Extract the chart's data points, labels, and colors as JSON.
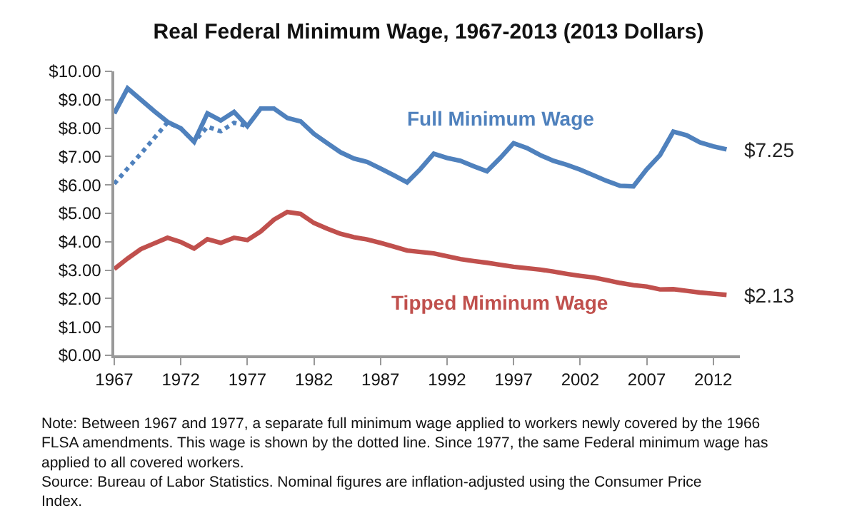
{
  "chart_data": {
    "type": "line",
    "title": "Real Federal Minimum Wage, 1967-2013 (2013 Dollars)",
    "x": [
      1967,
      1968,
      1969,
      1970,
      1971,
      1972,
      1973,
      1974,
      1975,
      1976,
      1977,
      1978,
      1979,
      1980,
      1981,
      1982,
      1983,
      1984,
      1985,
      1986,
      1987,
      1988,
      1989,
      1990,
      1991,
      1992,
      1993,
      1994,
      1995,
      1996,
      1997,
      1998,
      1999,
      2000,
      2001,
      2002,
      2003,
      2004,
      2005,
      2006,
      2007,
      2008,
      2009,
      2010,
      2011,
      2012,
      2013
    ],
    "series": [
      {
        "name": "Full Minimum Wage",
        "color": "#4f81bd",
        "line_style": "solid",
        "values": [
          8.52,
          9.4,
          9.0,
          8.6,
          8.22,
          7.99,
          7.52,
          8.52,
          8.27,
          8.57,
          8.07,
          8.69,
          8.69,
          8.36,
          8.24,
          7.8,
          7.47,
          7.15,
          6.93,
          6.81,
          6.58,
          6.34,
          6.09,
          6.56,
          7.1,
          6.95,
          6.85,
          6.66,
          6.48,
          6.95,
          7.47,
          7.3,
          7.05,
          6.85,
          6.71,
          6.54,
          6.34,
          6.14,
          5.97,
          5.95,
          6.55,
          7.05,
          7.88,
          7.75,
          7.5,
          7.36,
          7.25
        ]
      },
      {
        "color": "#4f81bd",
        "line_style": "dotted",
        "values": [
          6.04,
          6.58,
          7.1,
          7.65,
          8.2,
          7.99,
          7.52,
          8.05,
          7.89,
          8.19,
          8.07,
          null,
          null,
          null,
          null,
          null,
          null,
          null,
          null,
          null,
          null,
          null,
          null,
          null,
          null,
          null,
          null,
          null,
          null,
          null,
          null,
          null,
          null,
          null,
          null,
          null,
          null,
          null,
          null,
          null,
          null,
          null,
          null,
          null,
          null,
          null,
          null
        ]
      },
      {
        "name": "Tipped Miminum Wage",
        "color": "#c0504d",
        "line_style": "solid",
        "values": [
          3.04,
          3.41,
          3.74,
          3.94,
          4.14,
          3.99,
          3.76,
          4.09,
          3.96,
          4.14,
          4.06,
          4.36,
          4.78,
          5.05,
          4.98,
          4.66,
          4.46,
          4.28,
          4.16,
          4.08,
          3.96,
          3.83,
          3.69,
          3.64,
          3.59,
          3.49,
          3.39,
          3.32,
          3.26,
          3.19,
          3.12,
          3.07,
          3.02,
          2.95,
          2.87,
          2.8,
          2.74,
          2.65,
          2.55,
          2.47,
          2.42,
          2.32,
          2.33,
          2.27,
          2.21,
          2.17,
          2.13
        ]
      }
    ],
    "xlim": [
      1967,
      2014
    ],
    "xticks": [
      1967,
      1972,
      1977,
      1982,
      1987,
      1992,
      1997,
      2002,
      2007,
      2012
    ],
    "ylim": [
      0,
      10
    ],
    "yticks": [
      {
        "value": 0,
        "label": "$0.00"
      },
      {
        "value": 1,
        "label": "$1.00"
      },
      {
        "value": 2,
        "label": "$2.00"
      },
      {
        "value": 3,
        "label": "$3.00"
      },
      {
        "value": 4,
        "label": "$4.00"
      },
      {
        "value": 5,
        "label": "$5.00"
      },
      {
        "value": 6,
        "label": "$6.00"
      },
      {
        "value": 7,
        "label": "$7.00"
      },
      {
        "value": 8,
        "label": "$8.00"
      },
      {
        "value": 9,
        "label": "$9.00"
      },
      {
        "value": 10,
        "label": "$10.00"
      }
    ],
    "legend": false,
    "marker": "none",
    "annotations": [
      {
        "text": "$7.25",
        "x": 2013,
        "y": 7.25
      },
      {
        "text": "$2.13",
        "x": 2013,
        "y": 2.13
      },
      "Note: Between 1967 and 1977, a separate full minimum wage applied to workers newly covered by the 1966 FLSA amendments. This wage is shown by the dotted line. Since 1977, the same Federal minimum wage has applied to all covered workers.",
      "Source: Bureau of Labor Statistics. Nominal figures are inflation-adjusted using the Consumer Price Index."
    ]
  }
}
